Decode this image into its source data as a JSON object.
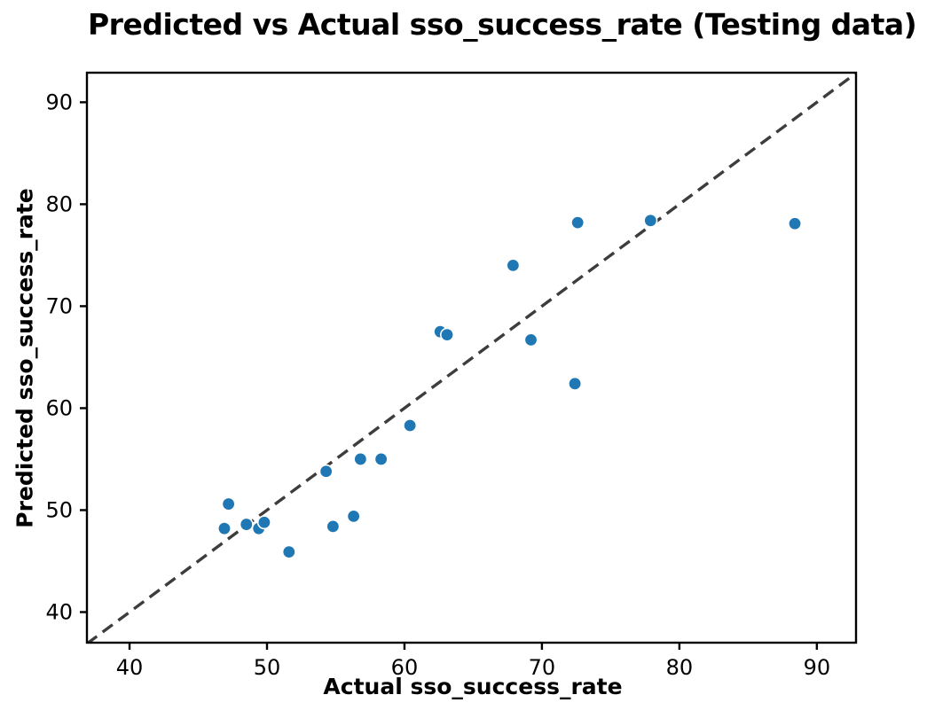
{
  "chart_data": {
    "type": "scatter",
    "title": "Predicted vs Actual sso_success_rate (Testing data)",
    "xlabel": "Actual sso_success_rate",
    "ylabel": "Predicted sso_success_rate",
    "xlim": [
      36.9,
      92.85
    ],
    "ylim": [
      37.0,
      92.9
    ],
    "xticks": [
      40,
      50,
      60,
      70,
      80,
      90
    ],
    "yticks": [
      40,
      50,
      60,
      70,
      80,
      90
    ],
    "grid": false,
    "legend": null,
    "series": [
      {
        "name": "predicted-vs-actual-points",
        "marker": "circle",
        "color": "#1f77b4",
        "edge_color": "#ffffff",
        "points": [
          [
            46.9,
            48.2
          ],
          [
            47.2,
            50.6
          ],
          [
            48.5,
            48.6
          ],
          [
            49.4,
            48.2
          ],
          [
            49.8,
            48.8
          ],
          [
            51.6,
            45.9
          ],
          [
            54.3,
            53.8
          ],
          [
            54.8,
            48.4
          ],
          [
            56.3,
            49.4
          ],
          [
            56.8,
            55.0
          ],
          [
            58.3,
            55.0
          ],
          [
            60.4,
            58.3
          ],
          [
            62.6,
            67.5
          ],
          [
            63.1,
            67.2
          ],
          [
            67.9,
            74.0
          ],
          [
            69.2,
            66.7
          ],
          [
            72.4,
            62.4
          ],
          [
            72.6,
            78.2
          ],
          [
            77.9,
            78.4
          ],
          [
            88.4,
            78.1
          ]
        ]
      }
    ],
    "reference_line": {
      "type": "identity",
      "style": "dashed",
      "color": "#3d3d3d",
      "from": [
        36.9,
        36.9
      ],
      "to": [
        92.9,
        92.9
      ]
    },
    "axis_color": "#000000",
    "background_color": "#ffffff"
  }
}
